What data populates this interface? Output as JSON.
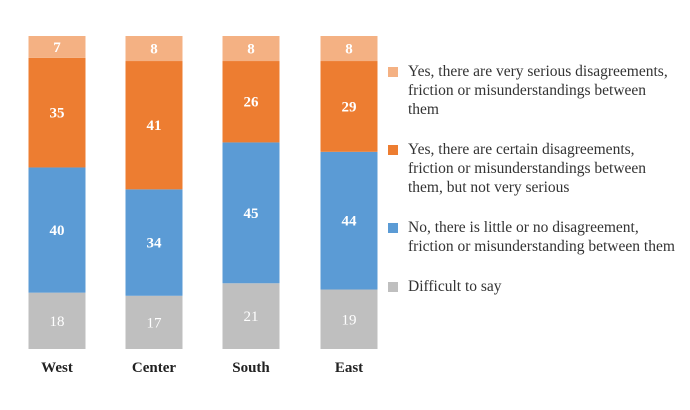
{
  "chart_data": {
    "type": "bar",
    "stacked": true,
    "percent_stacked": true,
    "categories": [
      "West",
      "Center",
      "South",
      "East"
    ],
    "series": [
      {
        "name": "Difficult to say",
        "color": "#bfbfbf",
        "values": [
          18,
          17,
          21,
          19
        ]
      },
      {
        "name": "No, there is little or no disagreement, friction or misunderstanding between them",
        "color": "#5b9bd5",
        "values": [
          40,
          34,
          45,
          44
        ]
      },
      {
        "name": "Yes, there are certain disagreements, friction or misunderstandings between them, but not very serious",
        "color": "#ed7d31",
        "values": [
          35,
          41,
          26,
          29
        ]
      },
      {
        "name": "Yes, there are very serious disagreements, friction or misunderstandings between them",
        "color": "#f4b183",
        "values": [
          7,
          8,
          8,
          8
        ]
      }
    ],
    "legend_placement": "right",
    "legend": [
      "Yes, there are very serious disagreements, friction or misunderstandings between them",
      "Yes, there are certain disagreements, friction or misunderstandings between them, but not very serious",
      "No, there is little or no disagreement, friction or misunderstanding between them",
      "Difficult to say"
    ],
    "legend_colors": [
      "#f4b183",
      "#ed7d31",
      "#5b9bd5",
      "#bfbfbf"
    ],
    "grid": false
  }
}
